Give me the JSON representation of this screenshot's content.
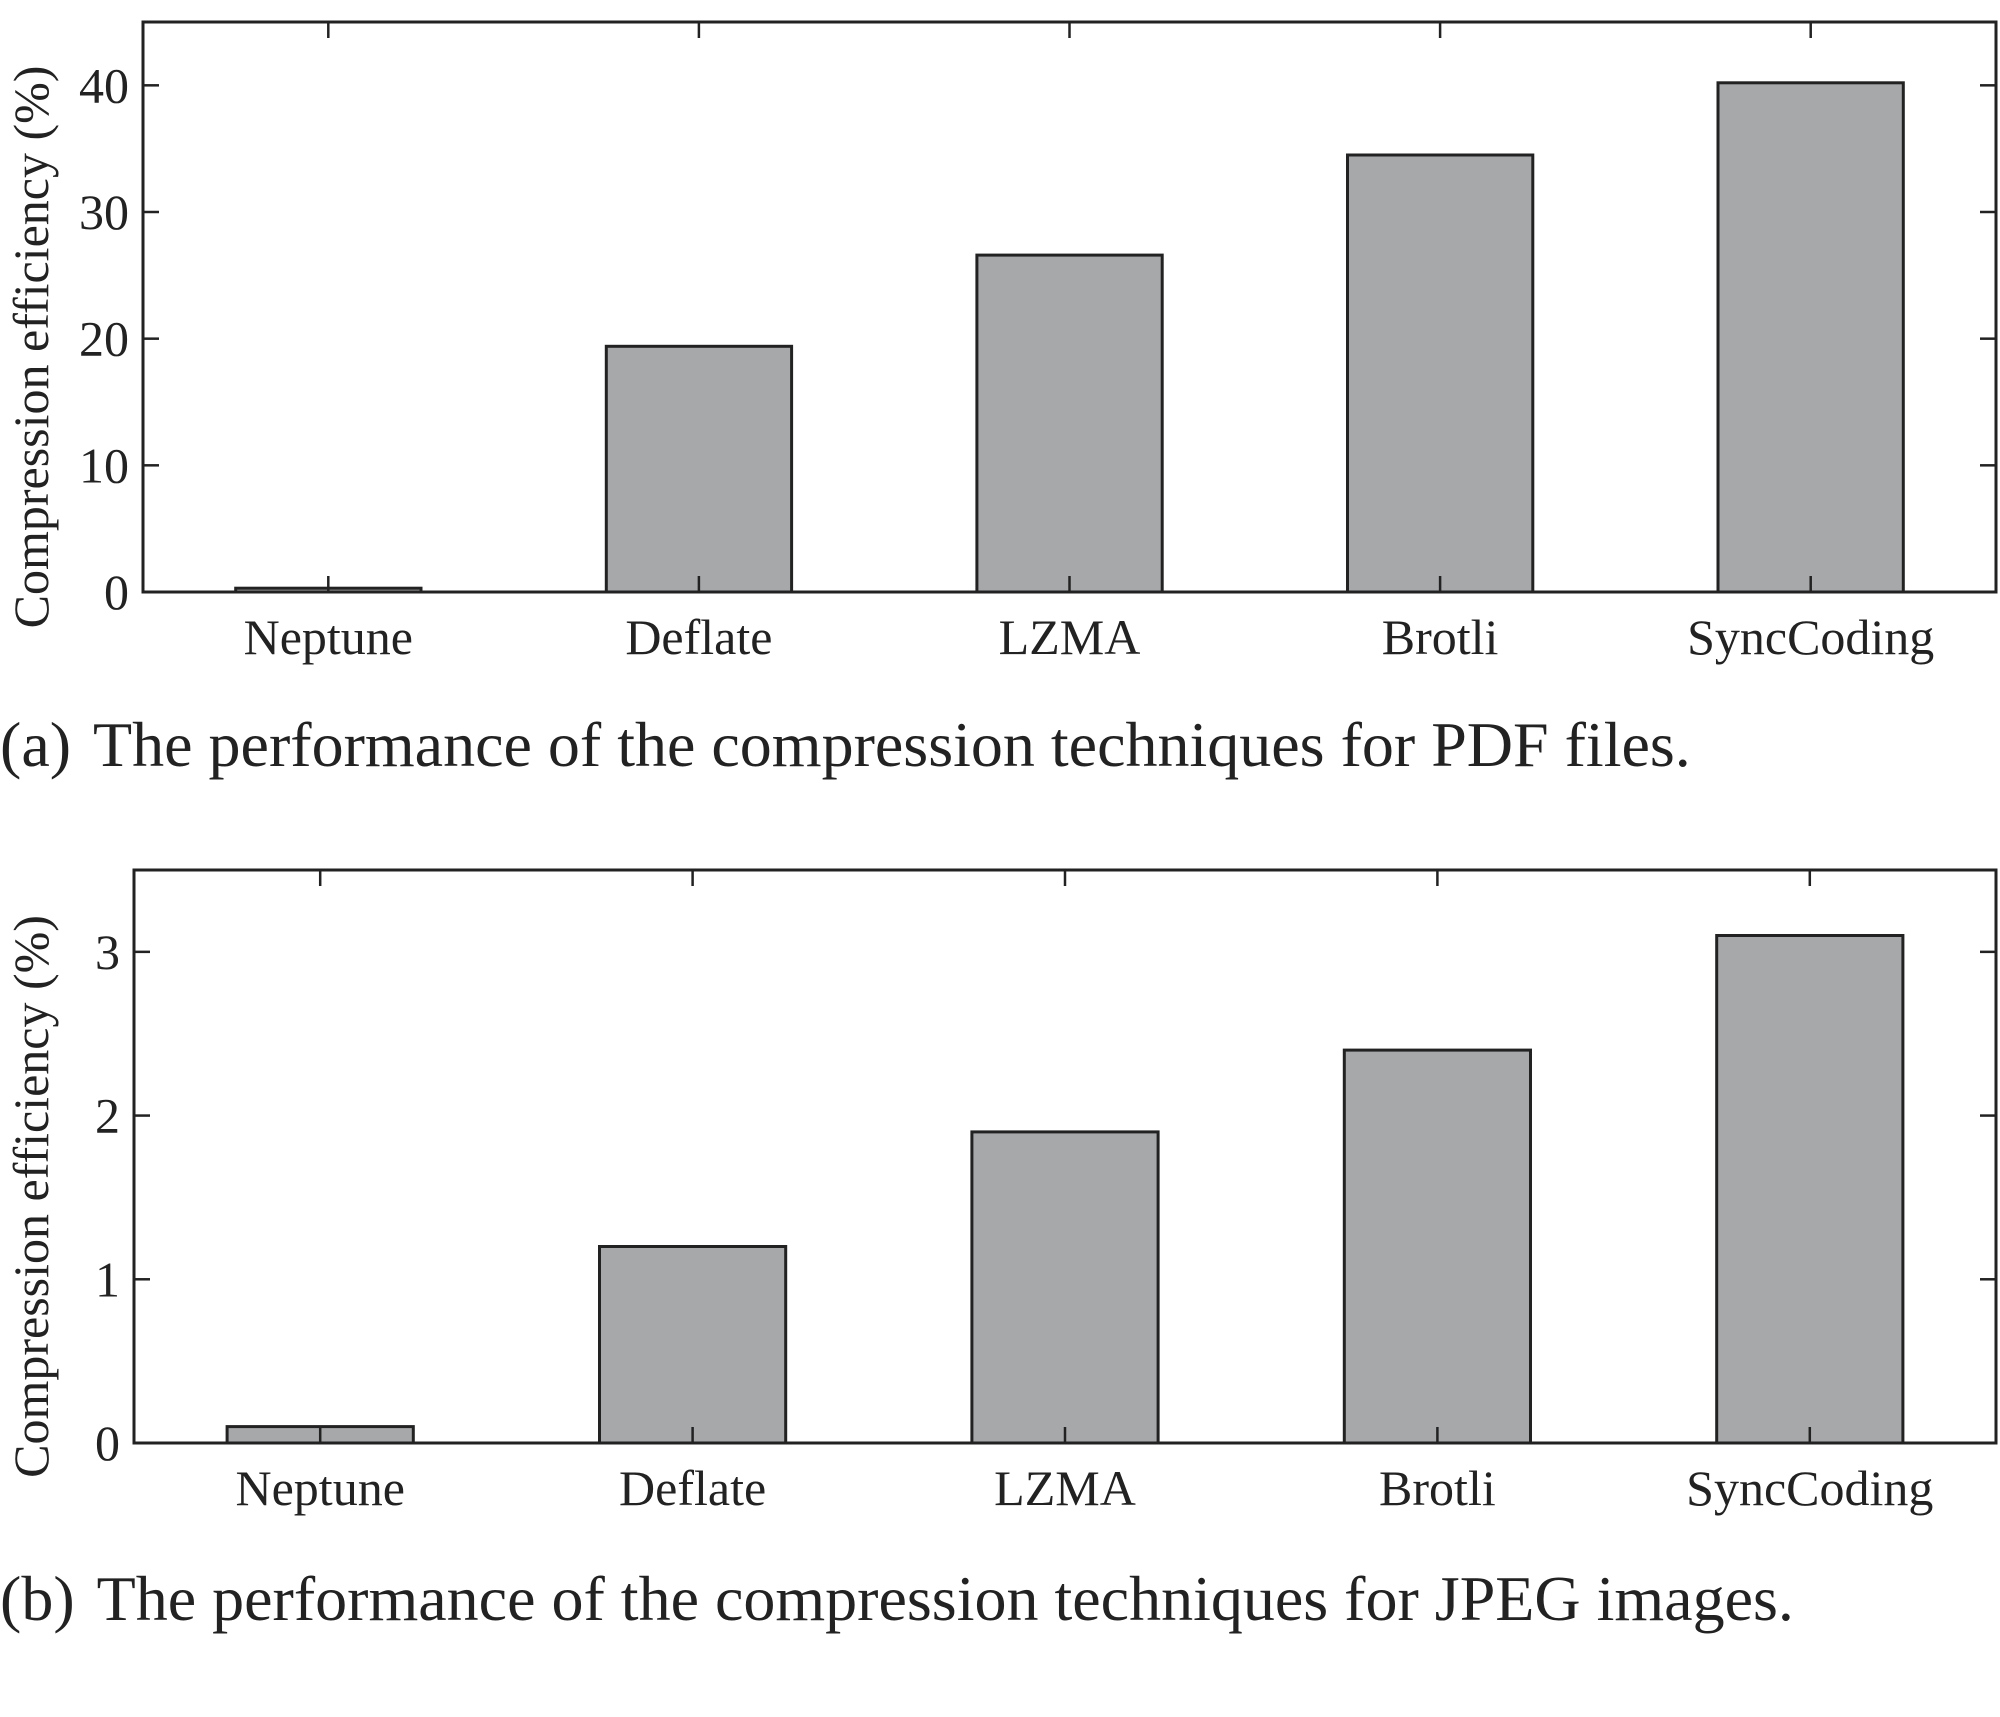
{
  "figure": {
    "captions": [
      {
        "label": "(a)",
        "text": "The performance of the compression techniques for PDF files."
      },
      {
        "label": "(b)",
        "text": "The performance of the compression techniques for JPEG images."
      }
    ]
  },
  "chart_data": [
    {
      "type": "bar",
      "panel": "a",
      "categories": [
        "Neptune",
        "Deflate",
        "LZMA",
        "Brotli",
        "SyncCoding"
      ],
      "values": [
        0.3,
        19.4,
        26.6,
        34.5,
        40.2
      ],
      "title": "",
      "xlabel": "",
      "ylabel": "Compression efficiency (%)",
      "ylim": [
        0,
        45
      ],
      "yticks": [
        0,
        10,
        20,
        30,
        40
      ],
      "grid": false,
      "bar_color": "#a7a8aa",
      "edge_color": "#222222"
    },
    {
      "type": "bar",
      "panel": "b",
      "categories": [
        "Neptune",
        "Deflate",
        "LZMA",
        "Brotli",
        "SyncCoding"
      ],
      "values": [
        0.1,
        1.2,
        1.9,
        2.4,
        3.1
      ],
      "title": "",
      "xlabel": "",
      "ylabel": "Compression efficiency (%)",
      "ylim": [
        0,
        3.5
      ],
      "yticks": [
        0,
        1,
        2,
        3
      ],
      "grid": false,
      "bar_color": "#a7a8aa",
      "edge_color": "#222222"
    }
  ]
}
